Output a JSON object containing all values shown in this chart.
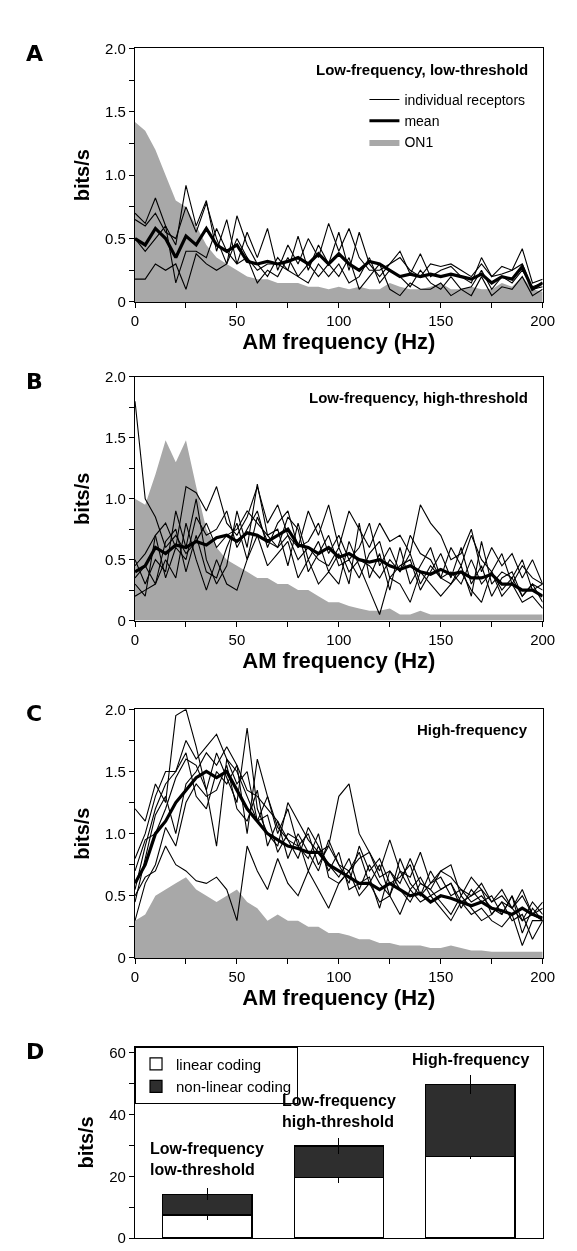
{
  "chart_data": [
    {
      "type": "line",
      "title": "Low-frequency, low-threshold",
      "xlabel": "AM frequency (Hz)",
      "ylabel": "bits/s",
      "annotations": [
        "A"
      ],
      "legend": "top right",
      "grid": false,
      "marker": "none",
      "x": [
        0,
        5,
        10,
        15,
        20,
        25,
        30,
        35,
        40,
        45,
        50,
        55,
        60,
        65,
        70,
        75,
        80,
        85,
        90,
        95,
        100,
        105,
        110,
        115,
        120,
        125,
        130,
        135,
        140,
        145,
        150,
        155,
        160,
        165,
        170,
        175,
        180,
        185,
        190,
        195,
        200
      ],
      "xlim": [
        0,
        200
      ],
      "xticks": [
        0,
        {
          "value": 25,
          "label": null
        },
        50,
        {
          "value": 75,
          "label": null
        },
        100,
        {
          "value": 125,
          "label": null
        },
        150,
        {
          "value": 175,
          "label": null
        },
        200
      ],
      "ylim": [
        0,
        2
      ],
      "yticks": [
        0,
        {
          "value": 0.25,
          "label": null
        },
        {
          "value": 0.5,
          "label": "0.5"
        },
        {
          "value": 0.75,
          "label": null
        },
        {
          "value": 1,
          "label": "1.0"
        },
        {
          "value": 1.25,
          "label": null
        },
        {
          "value": 1.5,
          "label": "1.5"
        },
        {
          "value": 1.75,
          "label": null
        },
        {
          "value": 2,
          "label": "2.0"
        }
      ],
      "series": [
        {
          "name": "ON1",
          "type": "area",
          "color": "#a8a8a8",
          "values": [
            1.42,
            1.35,
            1.2,
            1.0,
            0.8,
            0.75,
            0.6,
            0.45,
            0.35,
            0.3,
            0.25,
            0.2,
            0.18,
            0.18,
            0.15,
            0.15,
            0.15,
            0.12,
            0.12,
            0.1,
            0.12,
            0.1,
            0.12,
            0.1,
            0.1,
            0.15,
            0.12,
            0.1,
            0.1,
            0.12,
            0.15,
            0.1,
            0.1,
            0.12,
            0.1,
            0.1,
            0.15,
            0.12,
            0.2,
            0.1,
            0.08
          ]
        },
        {
          "name": "individual receptors",
          "color": "#000000",
          "values": [
            0.7,
            0.62,
            0.82,
            0.6,
            0.45,
            0.92,
            0.6,
            0.8,
            0.4,
            0.65,
            0.3,
            0.55,
            0.35,
            0.58,
            0.25,
            0.45,
            0.3,
            0.5,
            0.35,
            0.62,
            0.4,
            0.58,
            0.35,
            0.25,
            0.25,
            0.3,
            0.35,
            0.25,
            0.2,
            0.3,
            0.28,
            0.3,
            0.25,
            0.2,
            0.3,
            0.2,
            0.28,
            0.25,
            0.42,
            0.15,
            0.18
          ]
        },
        {
          "color": "#000000",
          "values": [
            0.65,
            0.6,
            0.7,
            0.55,
            0.5,
            0.75,
            0.55,
            0.78,
            0.5,
            0.3,
            0.68,
            0.45,
            0.3,
            0.2,
            0.35,
            0.25,
            0.52,
            0.25,
            0.45,
            0.3,
            0.55,
            0.25,
            0.55,
            0.3,
            0.2,
            0.3,
            0.4,
            0.22,
            0.38,
            0.2,
            0.25,
            0.28,
            0.2,
            0.15,
            0.35,
            0.2,
            0.22,
            0.25,
            0.3,
            0.1,
            0.12
          ]
        },
        {
          "color": "#000000",
          "values": [
            0.5,
            0.4,
            0.5,
            0.6,
            0.15,
            0.4,
            0.4,
            0.35,
            0.58,
            0.4,
            0.3,
            0.35,
            0.15,
            0.25,
            0.2,
            0.35,
            0.2,
            0.15,
            0.3,
            0.2,
            0.3,
            0.15,
            0.2,
            0.35,
            0.15,
            0.25,
            0.2,
            0.12,
            0.25,
            0.15,
            0.1,
            0.2,
            0.1,
            0.12,
            0.25,
            0.1,
            0.2,
            0.15,
            0.25,
            0.12,
            0.15
          ]
        },
        {
          "color": "#000000",
          "values": [
            0.18,
            0.18,
            0.3,
            0.25,
            0.3,
            0.1,
            0.38,
            0.3,
            0.25,
            0.3,
            0.5,
            0.35,
            0.25,
            0.3,
            0.3,
            0.25,
            0.2,
            0.3,
            0.2,
            0.3,
            0.2,
            0.35,
            0.1,
            0.2,
            0.3,
            0.1,
            0.05,
            0.15,
            0.1,
            0.1,
            0.15,
            0.05,
            0.1,
            0.05,
            0.2,
            0.05,
            0.12,
            0.1,
            0.2,
            0.05,
            0.1
          ]
        },
        {
          "name": "mean",
          "color": "#000000",
          "values": [
            0.5,
            0.45,
            0.58,
            0.5,
            0.35,
            0.52,
            0.45,
            0.58,
            0.45,
            0.4,
            0.45,
            0.32,
            0.3,
            0.32,
            0.3,
            0.32,
            0.35,
            0.3,
            0.38,
            0.3,
            0.38,
            0.3,
            0.25,
            0.32,
            0.3,
            0.25,
            0.2,
            0.22,
            0.2,
            0.22,
            0.2,
            0.22,
            0.2,
            0.18,
            0.22,
            0.15,
            0.2,
            0.18,
            0.28,
            0.1,
            0.15
          ]
        }
      ]
    },
    {
      "type": "line",
      "title": "Low-frequency, high-threshold",
      "xlabel": "AM frequency (Hz)",
      "ylabel": "bits/s",
      "annotations": [
        "B"
      ],
      "grid": false,
      "marker": "none",
      "x": [
        0,
        5,
        10,
        15,
        20,
        25,
        30,
        35,
        40,
        45,
        50,
        55,
        60,
        65,
        70,
        75,
        80,
        85,
        90,
        95,
        100,
        105,
        110,
        115,
        120,
        125,
        130,
        135,
        140,
        145,
        150,
        155,
        160,
        165,
        170,
        175,
        180,
        185,
        190,
        195,
        200
      ],
      "xlim": [
        0,
        200
      ],
      "xticks": [
        0,
        {
          "value": 25,
          "label": null
        },
        50,
        {
          "value": 75,
          "label": null
        },
        100,
        {
          "value": 125,
          "label": null
        },
        150,
        {
          "value": 175,
          "label": null
        },
        200
      ],
      "ylim": [
        0,
        2
      ],
      "yticks": [
        0,
        {
          "value": 0.25,
          "label": null
        },
        {
          "value": 0.5,
          "label": "0.5"
        },
        {
          "value": 0.75,
          "label": null
        },
        {
          "value": 1,
          "label": "1.0"
        },
        {
          "value": 1.25,
          "label": null
        },
        {
          "value": 1.5,
          "label": "1.5"
        },
        {
          "value": 1.75,
          "label": null
        },
        {
          "value": 2,
          "label": "2.0"
        }
      ],
      "series": [
        {
          "type": "area",
          "color": "#a8a8a8",
          "values": [
            1.0,
            0.95,
            1.2,
            1.48,
            1.3,
            1.48,
            1.1,
            0.75,
            0.6,
            0.5,
            0.45,
            0.4,
            0.35,
            0.35,
            0.3,
            0.3,
            0.25,
            0.25,
            0.2,
            0.15,
            0.15,
            0.12,
            0.1,
            0.08,
            0.08,
            0.1,
            0.05,
            0.05,
            0.08,
            0.05,
            0.05,
            0.05,
            0.05,
            0.05,
            0.05,
            0.05,
            0.05,
            0.05,
            0.05,
            0.05,
            0.05
          ]
        },
        {
          "color": "#000000",
          "values": [
            1.8,
            1.0,
            0.85,
            0.6,
            0.7,
            0.55,
            0.65,
            0.8,
            0.6,
            0.7,
            0.75,
            0.9,
            0.8,
            0.7,
            0.6,
            0.7,
            0.5,
            0.6,
            0.5,
            0.45,
            0.6,
            0.4,
            0.5,
            0.45,
            0.35,
            0.5,
            0.4,
            0.55,
            0.3,
            0.45,
            0.35,
            0.4,
            0.3,
            0.5,
            0.3,
            0.4,
            0.25,
            0.35,
            0.2,
            0.3,
            0.25
          ]
        },
        {
          "color": "#000000",
          "values": [
            0.3,
            0.2,
            0.7,
            0.8,
            0.6,
            1.1,
            1.05,
            0.9,
            1.1,
            0.8,
            0.7,
            0.85,
            1.1,
            0.8,
            0.95,
            0.7,
            0.6,
            0.9,
            0.7,
            0.95,
            0.6,
            0.9,
            0.75,
            0.6,
            0.8,
            0.65,
            0.7,
            0.55,
            0.95,
            0.8,
            0.7,
            0.5,
            0.55,
            0.75,
            0.4,
            0.6,
            0.45,
            0.55,
            0.35,
            0.5,
            0.3
          ]
        },
        {
          "color": "#000000",
          "values": [
            0.5,
            0.3,
            0.5,
            0.4,
            0.9,
            0.6,
            1.0,
            0.5,
            0.3,
            0.45,
            0.9,
            0.6,
            1.12,
            0.7,
            0.75,
            0.45,
            0.8,
            0.5,
            0.65,
            0.4,
            0.55,
            0.3,
            0.8,
            0.35,
            0.55,
            0.25,
            0.6,
            0.3,
            0.45,
            0.6,
            0.35,
            0.3,
            0.45,
            0.2,
            0.65,
            0.3,
            0.4,
            0.35,
            0.5,
            0.25,
            0.3
          ]
        },
        {
          "color": "#000000",
          "values": [
            0.2,
            0.25,
            0.3,
            0.5,
            0.35,
            0.8,
            0.5,
            0.25,
            0.5,
            0.3,
            0.25,
            0.5,
            0.7,
            0.45,
            0.55,
            0.65,
            0.35,
            0.5,
            0.3,
            0.4,
            0.3,
            0.65,
            0.45,
            0.25,
            0.05,
            0.35,
            0.3,
            0.15,
            0.4,
            0.3,
            0.2,
            0.3,
            0.4,
            0.25,
            0.15,
            0.4,
            0.2,
            0.3,
            0.15,
            0.2,
            0.1
          ]
        },
        {
          "color": "#000000",
          "values": [
            0.45,
            0.55,
            0.7,
            0.35,
            0.6,
            0.5,
            0.85,
            0.7,
            0.75,
            0.9,
            0.6,
            0.75,
            0.9,
            0.6,
            0.8,
            0.9,
            0.6,
            0.65,
            0.8,
            0.55,
            0.7,
            0.5,
            0.6,
            0.8,
            0.45,
            0.6,
            0.4,
            0.7,
            0.55,
            0.5,
            0.35,
            0.6,
            0.45,
            0.7,
            0.5,
            0.4,
            0.55,
            0.3,
            0.45,
            0.35,
            0.3
          ]
        },
        {
          "color": "#000000",
          "values": [
            0.35,
            0.45,
            0.3,
            0.65,
            0.75,
            0.4,
            0.7,
            0.4,
            0.35,
            0.6,
            0.8,
            0.5,
            0.85,
            0.65,
            0.6,
            0.85,
            0.75,
            0.4,
            0.55,
            0.7,
            0.45,
            0.5,
            0.35,
            0.55,
            0.65,
            0.35,
            0.45,
            0.5,
            0.25,
            0.4,
            0.55,
            0.35,
            0.6,
            0.3,
            0.45,
            0.2,
            0.35,
            0.4,
            0.2,
            0.3,
            0.15
          ]
        },
        {
          "color": "#000000",
          "values": [
            0.4,
            0.45,
            0.6,
            0.55,
            0.62,
            0.6,
            0.65,
            0.62,
            0.68,
            0.7,
            0.65,
            0.72,
            0.7,
            0.65,
            0.7,
            0.75,
            0.62,
            0.6,
            0.55,
            0.6,
            0.52,
            0.55,
            0.5,
            0.48,
            0.5,
            0.45,
            0.42,
            0.45,
            0.4,
            0.38,
            0.42,
            0.38,
            0.4,
            0.35,
            0.35,
            0.38,
            0.3,
            0.3,
            0.25,
            0.25,
            0.2
          ]
        }
      ]
    },
    {
      "type": "line",
      "title": "High-frequency",
      "xlabel": "AM frequency (Hz)",
      "ylabel": "bits/s",
      "annotations": [
        "C"
      ],
      "grid": false,
      "marker": "none",
      "x": [
        0,
        5,
        10,
        15,
        20,
        25,
        30,
        35,
        40,
        45,
        50,
        55,
        60,
        65,
        70,
        75,
        80,
        85,
        90,
        95,
        100,
        105,
        110,
        115,
        120,
        125,
        130,
        135,
        140,
        145,
        150,
        155,
        160,
        165,
        170,
        175,
        180,
        185,
        190,
        195,
        200
      ],
      "xlim": [
        0,
        200
      ],
      "xticks": [
        0,
        {
          "value": 25,
          "label": null
        },
        50,
        {
          "value": 75,
          "label": null
        },
        100,
        {
          "value": 125,
          "label": null
        },
        150,
        {
          "value": 175,
          "label": null
        },
        200
      ],
      "ylim": [
        0,
        2
      ],
      "yticks": [
        0,
        {
          "value": 0.25,
          "label": null
        },
        {
          "value": 0.5,
          "label": "0.5"
        },
        {
          "value": 0.75,
          "label": null
        },
        {
          "value": 1,
          "label": "1.0"
        },
        {
          "value": 1.25,
          "label": null
        },
        {
          "value": 1.5,
          "label": "1.5"
        },
        {
          "value": 1.75,
          "label": null
        },
        {
          "value": 2,
          "label": "2.0"
        }
      ],
      "series": [
        {
          "type": "area",
          "color": "#a8a8a8",
          "values": [
            0.3,
            0.35,
            0.5,
            0.55,
            0.6,
            0.65,
            0.55,
            0.5,
            0.45,
            0.5,
            0.55,
            0.45,
            0.4,
            0.3,
            0.35,
            0.3,
            0.3,
            0.25,
            0.25,
            0.2,
            0.2,
            0.18,
            0.15,
            0.15,
            0.12,
            0.12,
            0.1,
            0.1,
            0.1,
            0.08,
            0.08,
            0.1,
            0.08,
            0.06,
            0.06,
            0.05,
            0.05,
            0.05,
            0.05,
            0.05,
            0.05
          ]
        },
        {
          "color": "#000000",
          "values": [
            1.2,
            1.1,
            1.4,
            1.25,
            1.95,
            2.0,
            1.7,
            1.35,
            1.65,
            1.45,
            1.25,
            1.85,
            1.2,
            1.0,
            0.9,
            1.25,
            1.1,
            0.95,
            0.85,
            0.9,
            0.75,
            0.7,
            0.8,
            0.85,
            0.65,
            0.7,
            0.6,
            0.8,
            0.6,
            0.55,
            0.7,
            0.65,
            0.55,
            0.5,
            0.6,
            0.45,
            0.5,
            0.4,
            0.5,
            0.35,
            0.4
          ]
        },
        {
          "color": "#000000",
          "values": [
            0.8,
            1.0,
            1.3,
            1.5,
            1.5,
            1.65,
            1.3,
            1.2,
            1.5,
            1.4,
            1.55,
            1.0,
            1.6,
            1.3,
            1.0,
            1.2,
            0.9,
            1.0,
            0.75,
            0.9,
            1.3,
            1.4,
            1.0,
            0.85,
            0.7,
            0.95,
            0.7,
            0.65,
            0.85,
            0.6,
            0.7,
            0.75,
            0.5,
            0.65,
            0.55,
            0.45,
            0.55,
            0.4,
            0.55,
            0.35,
            0.45
          ]
        },
        {
          "color": "#000000",
          "values": [
            0.5,
            0.65,
            0.7,
            0.9,
            0.75,
            0.7,
            0.62,
            0.6,
            0.65,
            0.55,
            0.3,
            0.9,
            0.7,
            0.55,
            0.8,
            0.6,
            0.5,
            0.7,
            0.55,
            0.4,
            0.6,
            0.7,
            0.5,
            0.6,
            0.45,
            0.5,
            0.35,
            0.55,
            0.45,
            0.5,
            0.4,
            0.3,
            0.45,
            0.35,
            0.4,
            0.3,
            0.25,
            0.35,
            0.1,
            0.3,
            0.3
          ]
        },
        {
          "color": "#000000",
          "values": [
            0.55,
            0.9,
            1.2,
            1.4,
            1.5,
            1.75,
            1.6,
            1.7,
            1.8,
            1.6,
            1.4,
            1.5,
            1.1,
            1.3,
            1.05,
            0.95,
            0.9,
            0.8,
            1.0,
            0.65,
            0.6,
            0.7,
            0.85,
            0.6,
            0.75,
            0.5,
            0.8,
            0.6,
            0.5,
            0.7,
            0.55,
            0.6,
            0.45,
            0.5,
            0.55,
            0.35,
            0.45,
            0.4,
            0.3,
            0.45,
            0.35
          ]
        },
        {
          "color": "#000000",
          "values": [
            0.7,
            0.95,
            1.0,
            1.2,
            1.45,
            1.6,
            1.55,
            1.35,
            0.9,
            1.6,
            1.5,
            1.3,
            1.1,
            1.15,
            0.85,
            1.0,
            0.95,
            0.7,
            0.9,
            0.75,
            0.65,
            0.8,
            0.55,
            0.75,
            0.6,
            0.5,
            0.7,
            0.55,
            0.65,
            0.5,
            0.55,
            0.6,
            0.4,
            0.55,
            0.45,
            0.5,
            0.35,
            0.5,
            0.3,
            0.35,
            0.3
          ]
        },
        {
          "color": "#000000",
          "values": [
            0.45,
            0.8,
            1.15,
            1.3,
            1.0,
            1.4,
            1.5,
            1.65,
            1.55,
            1.7,
            1.55,
            1.35,
            1.3,
            1.2,
            1.1,
            0.8,
            1.0,
            0.85,
            0.7,
            0.95,
            0.75,
            0.6,
            0.9,
            0.7,
            0.8,
            0.6,
            0.65,
            0.75,
            0.5,
            0.6,
            0.65,
            0.5,
            0.55,
            0.45,
            0.5,
            0.4,
            0.35,
            0.5,
            0.2,
            0.4,
            0.3
          ]
        },
        {
          "color": "#000000",
          "values": [
            0.3,
            0.6,
            0.75,
            1.05,
            0.9,
            1.25,
            1.4,
            1.3,
            1.35,
            1.55,
            1.2,
            1.1,
            1.35,
            0.9,
            1.1,
            0.95,
            0.8,
            1.05,
            0.9,
            0.7,
            0.85,
            0.55,
            0.6,
            0.65,
            0.4,
            0.7,
            0.55,
            0.45,
            0.6,
            0.55,
            0.45,
            0.35,
            0.5,
            0.4,
            0.3,
            0.35,
            0.45,
            0.3,
            0.35,
            0.15,
            0.3
          ]
        },
        {
          "color": "#000000",
          "values": [
            0.6,
            0.75,
            1.0,
            1.1,
            1.25,
            1.35,
            1.45,
            1.5,
            1.45,
            1.5,
            1.35,
            1.2,
            1.1,
            1.0,
            0.95,
            0.9,
            0.88,
            0.85,
            0.85,
            0.75,
            0.7,
            0.65,
            0.6,
            0.6,
            0.55,
            0.6,
            0.55,
            0.5,
            0.52,
            0.45,
            0.5,
            0.48,
            0.45,
            0.42,
            0.45,
            0.4,
            0.38,
            0.35,
            0.4,
            0.35,
            0.32
          ]
        }
      ]
    },
    {
      "type": "bar",
      "stacked": true,
      "ylabel": "bits/s",
      "legend": "top left",
      "grid": false,
      "tick_labels": "y",
      "annotations": [
        "D",
        {
          "text": "Low-frequency\nlow-threshold",
          "y": 14.2
        },
        {
          "text": "Low-frequency\nhigh-threshold",
          "y": 29.8
        },
        {
          "text": "High-frequency",
          "y": 49.8
        }
      ],
      "categories": [
        null,
        null,
        null
      ],
      "ylim": [
        0,
        62
      ],
      "yticks": [
        0,
        {
          "value": 10,
          "label": null
        },
        20,
        {
          "value": 30,
          "label": null
        },
        40,
        {
          "value": 50,
          "label": null
        },
        60
      ],
      "series": [
        {
          "name": "linear coding",
          "color": "#ffffff",
          "values": [
            7.5,
            19.5,
            26.5
          ],
          "errors": [
            1.5,
            1.5,
            1.0
          ]
        },
        {
          "name": "non-linear coding",
          "color": "#2e2e2e",
          "values": [
            6.7,
            10.3,
            23.3
          ],
          "errors": [
            2,
            2.5,
            3
          ]
        }
      ]
    }
  ]
}
